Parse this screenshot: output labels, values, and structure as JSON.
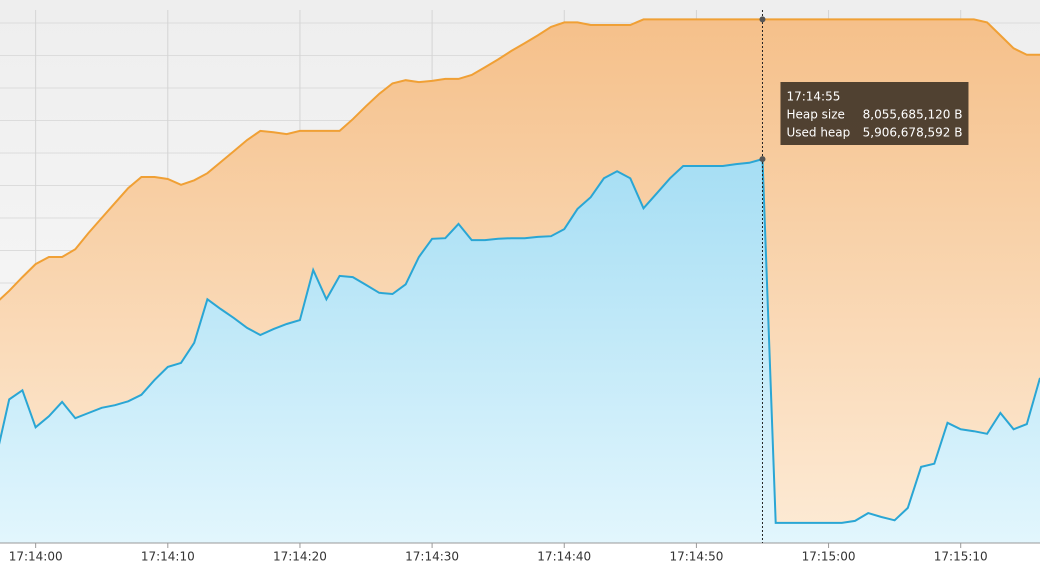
{
  "chart_data": {
    "type": "area",
    "x": [
      "17:13:57",
      "17:13:58",
      "17:13:59",
      "17:14:00",
      "17:14:01",
      "17:14:02",
      "17:14:03",
      "17:14:04",
      "17:14:05",
      "17:14:06",
      "17:14:07",
      "17:14:08",
      "17:14:09",
      "17:14:10",
      "17:14:11",
      "17:14:12",
      "17:14:13",
      "17:14:14",
      "17:14:15",
      "17:14:16",
      "17:14:17",
      "17:14:18",
      "17:14:19",
      "17:14:20",
      "17:14:21",
      "17:14:22",
      "17:14:23",
      "17:14:24",
      "17:14:25",
      "17:14:26",
      "17:14:27",
      "17:14:28",
      "17:14:29",
      "17:14:30",
      "17:14:31",
      "17:14:32",
      "17:14:33",
      "17:14:34",
      "17:14:35",
      "17:14:36",
      "17:14:37",
      "17:14:38",
      "17:14:39",
      "17:14:40",
      "17:14:41",
      "17:14:42",
      "17:14:43",
      "17:14:44",
      "17:14:45",
      "17:14:46",
      "17:14:47",
      "17:14:48",
      "17:14:49",
      "17:14:50",
      "17:14:51",
      "17:14:52",
      "17:14:53",
      "17:14:54",
      "17:14:55",
      "17:14:56",
      "17:14:57",
      "17:14:58",
      "17:14:59",
      "17:15:00",
      "17:15:01",
      "17:15:02",
      "17:15:03",
      "17:15:04",
      "17:15:05",
      "17:15:06",
      "17:15:07",
      "17:15:08",
      "17:15:09",
      "17:15:10",
      "17:15:11",
      "17:15:12",
      "17:15:13",
      "17:15:14",
      "17:15:15",
      "17:15:16"
    ],
    "series": [
      {
        "name": "Heap size",
        "color": "#f0a035",
        "fill": [
          "#f5c08a",
          "#fdebd6"
        ],
        "values": [
          3690000000,
          3880000000,
          4090000000,
          4290000000,
          4400000000,
          4400000000,
          4520000000,
          4770000000,
          5000000000,
          5230000000,
          5460000000,
          5630000000,
          5630000000,
          5600000000,
          5510000000,
          5580000000,
          5690000000,
          5860000000,
          6030000000,
          6200000000,
          6340000000,
          6320000000,
          6290000000,
          6340000000,
          6340000000,
          6340000000,
          6340000000,
          6520000000,
          6720000000,
          6910000000,
          7070000000,
          7120000000,
          7090000000,
          7110000000,
          7140000000,
          7140000000,
          7200000000,
          7320000000,
          7440000000,
          7570000000,
          7690000000,
          7810000000,
          7940000000,
          8010000000,
          8010000000,
          7970000000,
          7970000000,
          7970000000,
          7970000000,
          8055685120,
          8055685120,
          8055685120,
          8055685120,
          8055685120,
          8055685120,
          8055685120,
          8055685120,
          8055685120,
          8055685120,
          8055685120,
          8055685120,
          8055685120,
          8055685120,
          8055685120,
          8055685120,
          8055685120,
          8055685120,
          8055685120,
          8055685120,
          8055685120,
          8055685120,
          8055685120,
          8055685120,
          8055685120,
          8055685120,
          8010000000,
          7810000000,
          7610000000,
          7510000000,
          7510000000
        ]
      },
      {
        "name": "Used heap",
        "color": "#2aa6d4",
        "fill": [
          "#a6def4",
          "#e2f6fd"
        ],
        "values": [
          1310000000,
          2210000000,
          2350000000,
          1780000000,
          1950000000,
          2170000000,
          1920000000,
          2000000000,
          2080000000,
          2120000000,
          2180000000,
          2280000000,
          2510000000,
          2710000000,
          2770000000,
          3080000000,
          3750000000,
          3600000000,
          3460000000,
          3310000000,
          3200000000,
          3290000000,
          3370000000,
          3430000000,
          4200000000,
          3750000000,
          4110000000,
          4090000000,
          3970000000,
          3850000000,
          3830000000,
          3980000000,
          4400000000,
          4680000000,
          4690000000,
          4910000000,
          4660000000,
          4660000000,
          4680000000,
          4690000000,
          4690000000,
          4710000000,
          4720000000,
          4830000000,
          5140000000,
          5320000000,
          5610000000,
          5720000000,
          5610000000,
          5150000000,
          5380000000,
          5610000000,
          5800000000,
          5800000000,
          5800000000,
          5800000000,
          5830000000,
          5850000000,
          5906678592,
          310000000,
          310000000,
          310000000,
          310000000,
          310000000,
          310000000,
          340000000,
          460000000,
          400000000,
          350000000,
          540000000,
          1170000000,
          1220000000,
          1850000000,
          1750000000,
          1720000000,
          1680000000,
          2000000000,
          1750000000,
          1830000000,
          2540000000
        ]
      }
    ],
    "xlim": [
      "17:13:57",
      "17:15:16"
    ],
    "xticks": [
      "17:14:00",
      "17:14:10",
      "17:14:20",
      "17:14:30",
      "17:14:40",
      "17:14:50",
      "17:15:00",
      "17:15:10"
    ],
    "ylim": [
      0,
      8200000000
    ],
    "yticks": [
      500000000,
      1000000000,
      1500000000,
      2000000000,
      2500000000,
      3000000000,
      3500000000,
      4000000000,
      4500000000,
      5000000000,
      5500000000,
      6000000000,
      6500000000,
      7000000000,
      7500000000,
      8000000000
    ],
    "grid": true,
    "tooltip": {
      "x": "17:14:55",
      "labels": [
        "8,055,685,120 B",
        "5,906,678,592 B"
      ]
    }
  }
}
